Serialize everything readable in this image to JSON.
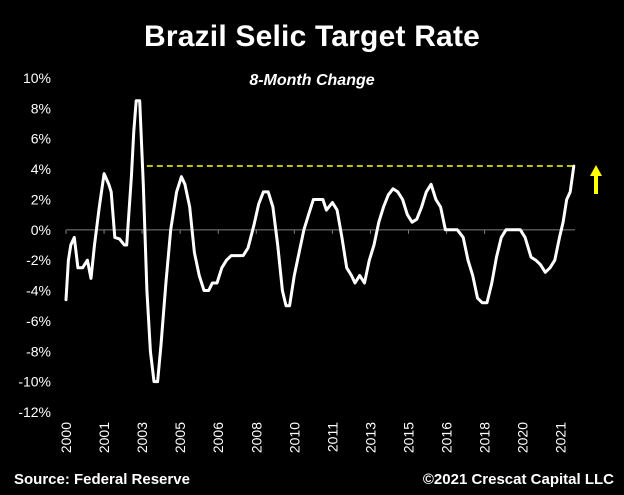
{
  "title": "Brazil Selic Target Rate",
  "subtitle": "8-Month Change",
  "footer": {
    "source": "Source: Federal Reserve",
    "copyright": "©2021 Crescat Capital LLC"
  },
  "colors": {
    "background": "#000000",
    "line": "#ffffff",
    "reference_line": "#ffff00",
    "arrow": "#ffff00"
  },
  "chart_data": {
    "type": "line",
    "title": "Brazil Selic Target Rate",
    "subtitle": "8-Month Change",
    "xlabel": "",
    "ylabel": "",
    "ylim": [
      -12,
      10
    ],
    "xlim": [
      2000.0,
      2021.4
    ],
    "grid": false,
    "legend": "none",
    "yticks": [
      "10%",
      "8%",
      "6%",
      "4%",
      "2%",
      "0%",
      "-2%",
      "-4%",
      "-6%",
      "-8%",
      "-10%",
      "-12%"
    ],
    "ytick_values": [
      10,
      8,
      6,
      4,
      2,
      0,
      -2,
      -4,
      -6,
      -8,
      -10,
      -12
    ],
    "xticks": [
      "2000",
      "2001",
      "2003",
      "2005",
      "2006",
      "2008",
      "2010",
      "2011",
      "2013",
      "2015",
      "2016",
      "2018",
      "2020",
      "2021"
    ],
    "xtick_values": [
      2000,
      2001.6,
      2003.2,
      2004.8,
      2006.4,
      2008,
      2009.6,
      2011.2,
      2012.8,
      2014.4,
      2016,
      2017.6,
      2019.2,
      2020.8
    ],
    "reference_line": {
      "y": 4.2,
      "x_start": 2003.4,
      "x_end": 2021.3,
      "style": "dashed"
    },
    "arrow": {
      "direction": "up"
    },
    "series": [
      {
        "values": [
          [
            2000.0,
            -4.6
          ],
          [
            2000.1,
            -2.0
          ],
          [
            2000.2,
            -1.0
          ],
          [
            2000.35,
            -0.5
          ],
          [
            2000.5,
            -2.5
          ],
          [
            2000.7,
            -2.5
          ],
          [
            2000.9,
            -2.0
          ],
          [
            2001.05,
            -3.2
          ],
          [
            2001.2,
            -1.0
          ],
          [
            2001.4,
            1.5
          ],
          [
            2001.6,
            3.7
          ],
          [
            2001.8,
            3.0
          ],
          [
            2001.9,
            2.5
          ],
          [
            2002.05,
            -0.5
          ],
          [
            2002.25,
            -0.6
          ],
          [
            2002.45,
            -1.0
          ],
          [
            2002.55,
            -1.0
          ],
          [
            2002.75,
            3.5
          ],
          [
            2002.85,
            6.5
          ],
          [
            2002.95,
            8.5
          ],
          [
            2003.1,
            8.5
          ],
          [
            2003.25,
            3.0
          ],
          [
            2003.4,
            -4.0
          ],
          [
            2003.55,
            -8.0
          ],
          [
            2003.7,
            -10.0
          ],
          [
            2003.85,
            -10.0
          ],
          [
            2004.0,
            -7.5
          ],
          [
            2004.2,
            -3.5
          ],
          [
            2004.4,
            0.0
          ],
          [
            2004.65,
            2.5
          ],
          [
            2004.85,
            3.5
          ],
          [
            2005.0,
            3.0
          ],
          [
            2005.2,
            1.5
          ],
          [
            2005.4,
            -1.5
          ],
          [
            2005.6,
            -3.0
          ],
          [
            2005.8,
            -4.0
          ],
          [
            2006.0,
            -4.0
          ],
          [
            2006.15,
            -3.5
          ],
          [
            2006.35,
            -3.5
          ],
          [
            2006.55,
            -2.5
          ],
          [
            2006.75,
            -2.0
          ],
          [
            2006.95,
            -1.7
          ],
          [
            2007.2,
            -1.7
          ],
          [
            2007.45,
            -1.7
          ],
          [
            2007.65,
            -1.2
          ],
          [
            2007.9,
            0.3
          ],
          [
            2008.1,
            1.7
          ],
          [
            2008.3,
            2.5
          ],
          [
            2008.5,
            2.5
          ],
          [
            2008.7,
            1.5
          ],
          [
            2008.9,
            -1.0
          ],
          [
            2009.1,
            -4.0
          ],
          [
            2009.25,
            -5.0
          ],
          [
            2009.4,
            -5.0
          ],
          [
            2009.6,
            -3.0
          ],
          [
            2009.8,
            -1.5
          ],
          [
            2010.0,
            0.0
          ],
          [
            2010.2,
            1.0
          ],
          [
            2010.4,
            2.0
          ],
          [
            2010.6,
            2.0
          ],
          [
            2010.8,
            2.0
          ],
          [
            2010.95,
            1.3
          ],
          [
            2011.2,
            1.8
          ],
          [
            2011.4,
            1.3
          ],
          [
            2011.6,
            -0.5
          ],
          [
            2011.8,
            -2.5
          ],
          [
            2012.0,
            -3.0
          ],
          [
            2012.15,
            -3.5
          ],
          [
            2012.35,
            -3.0
          ],
          [
            2012.55,
            -3.5
          ],
          [
            2012.75,
            -2.0
          ],
          [
            2012.95,
            -1.0
          ],
          [
            2013.15,
            0.5
          ],
          [
            2013.35,
            1.5
          ],
          [
            2013.55,
            2.3
          ],
          [
            2013.75,
            2.7
          ],
          [
            2013.95,
            2.5
          ],
          [
            2014.15,
            2.0
          ],
          [
            2014.35,
            1.0
          ],
          [
            2014.55,
            0.5
          ],
          [
            2014.75,
            0.7
          ],
          [
            2014.95,
            1.5
          ],
          [
            2015.15,
            2.5
          ],
          [
            2015.35,
            3.0
          ],
          [
            2015.55,
            2.0
          ],
          [
            2015.75,
            1.5
          ],
          [
            2015.95,
            0.0
          ],
          [
            2016.2,
            0.0
          ],
          [
            2016.45,
            0.0
          ],
          [
            2016.7,
            -0.5
          ],
          [
            2016.9,
            -2.0
          ],
          [
            2017.1,
            -3.0
          ],
          [
            2017.3,
            -4.5
          ],
          [
            2017.5,
            -4.8
          ],
          [
            2017.7,
            -4.8
          ],
          [
            2017.9,
            -3.5
          ],
          [
            2018.1,
            -1.8
          ],
          [
            2018.3,
            -0.5
          ],
          [
            2018.5,
            0.0
          ],
          [
            2018.7,
            0.0
          ],
          [
            2018.9,
            0.0
          ],
          [
            2019.1,
            0.0
          ],
          [
            2019.3,
            -0.5
          ],
          [
            2019.55,
            -1.8
          ],
          [
            2019.75,
            -2.0
          ],
          [
            2019.95,
            -2.3
          ],
          [
            2020.15,
            -2.8
          ],
          [
            2020.35,
            -2.5
          ],
          [
            2020.55,
            -2.0
          ],
          [
            2020.75,
            -0.5
          ],
          [
            2020.9,
            0.5
          ],
          [
            2021.05,
            2.0
          ],
          [
            2021.2,
            2.5
          ],
          [
            2021.35,
            4.2
          ]
        ]
      }
    ]
  }
}
